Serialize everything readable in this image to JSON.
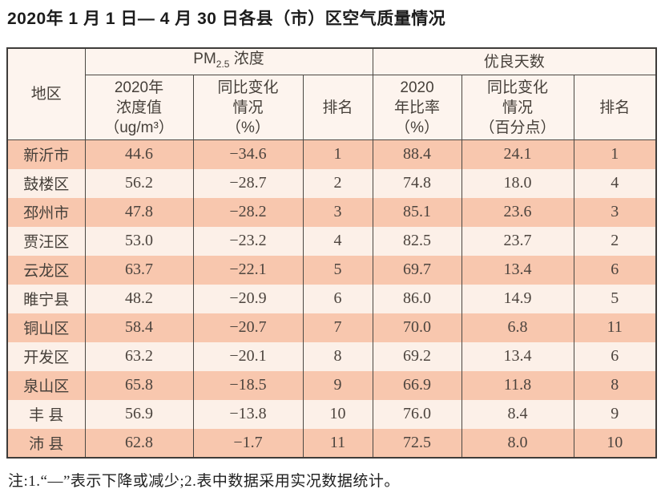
{
  "colors": {
    "row_odd_bg": "#f8c7ae",
    "row_even_bg": "#fcf0e8",
    "header_bg": "#fdf4ee",
    "border": "#4b4843",
    "text": "#46403a"
  },
  "note": "注:1.“—”表示下降或减少;2.表中数据采用实况数据统计。",
  "chart_data": {
    "type": "table",
    "title": "2020年 1 月 1 日— 4 月 30 日各县（市）区空气质量情况",
    "region_header": "地区",
    "group_headers": {
      "pm": {
        "prefix": "PM",
        "subscript": "2.5",
        "suffix": " 浓度"
      },
      "good_days": {
        "label": "优良天数"
      }
    },
    "sub_headers": {
      "pm_value": "2020年\n浓度值\n（ug/m³）",
      "pm_change": "同比变化\n情况\n（%）",
      "pm_rank": "排名",
      "good_rate": "2020\n年比率\n（%）",
      "good_change": "同比变化\n情况\n（百分点）",
      "good_rank": "排名"
    },
    "rows": [
      {
        "region": "新沂市",
        "pm_value": "44.6",
        "pm_change": "−34.6",
        "pm_rank": "1",
        "good_rate": "88.4",
        "good_change": "24.1",
        "good_rank": "1"
      },
      {
        "region": "鼓楼区",
        "pm_value": "56.2",
        "pm_change": "−28.7",
        "pm_rank": "2",
        "good_rate": "74.8",
        "good_change": "18.0",
        "good_rank": "4"
      },
      {
        "region": "邳州市",
        "pm_value": "47.8",
        "pm_change": "−28.2",
        "pm_rank": "3",
        "good_rate": "85.1",
        "good_change": "23.6",
        "good_rank": "3"
      },
      {
        "region": "贾汪区",
        "pm_value": "53.0",
        "pm_change": "−23.2",
        "pm_rank": "4",
        "good_rate": "82.5",
        "good_change": "23.7",
        "good_rank": "2"
      },
      {
        "region": "云龙区",
        "pm_value": "63.7",
        "pm_change": "−22.1",
        "pm_rank": "5",
        "good_rate": "69.7",
        "good_change": "13.4",
        "good_rank": "6"
      },
      {
        "region": "睢宁县",
        "pm_value": "48.2",
        "pm_change": "−20.9",
        "pm_rank": "6",
        "good_rate": "86.0",
        "good_change": "14.9",
        "good_rank": "5"
      },
      {
        "region": "铜山区",
        "pm_value": "58.4",
        "pm_change": "−20.7",
        "pm_rank": "7",
        "good_rate": "70.0",
        "good_change": "6.8",
        "good_rank": "11"
      },
      {
        "region": "开发区",
        "pm_value": "63.2",
        "pm_change": "−20.1",
        "pm_rank": "8",
        "good_rate": "69.2",
        "good_change": "13.4",
        "good_rank": "6"
      },
      {
        "region": "泉山区",
        "pm_value": "65.8",
        "pm_change": "−18.5",
        "pm_rank": "9",
        "good_rate": "66.9",
        "good_change": "11.8",
        "good_rank": "8"
      },
      {
        "region": "丰 县",
        "pm_value": "56.9",
        "pm_change": "−13.8",
        "pm_rank": "10",
        "good_rate": "76.0",
        "good_change": "8.4",
        "good_rank": "9"
      },
      {
        "region": "沛 县",
        "pm_value": "62.8",
        "pm_change": "−1.7",
        "pm_rank": "11",
        "good_rate": "72.5",
        "good_change": "8.0",
        "good_rank": "10"
      }
    ]
  }
}
